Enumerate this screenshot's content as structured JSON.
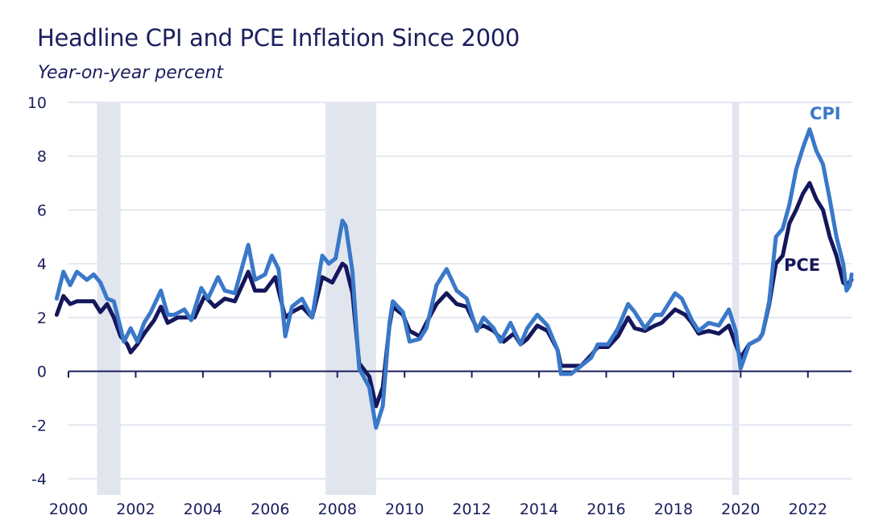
{
  "chart_data": {
    "type": "line",
    "title": "Headline CPI and PCE Inflation Since 2000",
    "subtitle": "Year-on-year percent",
    "xlabel": "",
    "ylabel": "",
    "xlim": [
      2000,
      2023.3
    ],
    "ylim": [
      -4,
      10
    ],
    "grid": true,
    "x_ticks": [
      "2000",
      "2002",
      "2004",
      "2006",
      "2008",
      "2010",
      "2012",
      "2014",
      "2016",
      "2018",
      "2020",
      "2022"
    ],
    "y_ticks": [
      "10",
      "8",
      "6",
      "4",
      "2",
      "0",
      "-2",
      "-4"
    ],
    "recessions": [
      [
        2001.2,
        2001.9
      ],
      [
        2008.0,
        2009.5
      ],
      [
        2020.1,
        2020.3
      ]
    ],
    "colors": {
      "CPI": "#3a78c9",
      "PCE": "#15175c",
      "recession": "#e1e5ee",
      "grid": "#e4e7f0",
      "axis": "#1b1f5e"
    },
    "series": [
      {
        "name": "CPI",
        "label": "CPI",
        "x": [
          2000.0,
          2000.2,
          2000.4,
          2000.6,
          2000.9,
          2001.1,
          2001.3,
          2001.5,
          2001.7,
          2001.9,
          2002.0,
          2002.2,
          2002.4,
          2002.6,
          2002.8,
          2003.1,
          2003.3,
          2003.5,
          2003.8,
          2004.0,
          2004.3,
          2004.5,
          2004.8,
          2005.0,
          2005.3,
          2005.7,
          2005.9,
          2006.2,
          2006.4,
          2006.6,
          2006.8,
          2007.0,
          2007.3,
          2007.6,
          2007.9,
          2008.1,
          2008.3,
          2008.5,
          2008.6,
          2008.8,
          2009.0,
          2009.3,
          2009.5,
          2009.7,
          2009.9,
          2010.0,
          2010.3,
          2010.5,
          2010.8,
          2011.0,
          2011.3,
          2011.6,
          2011.9,
          2012.2,
          2012.5,
          2012.7,
          2013.0,
          2013.2,
          2013.5,
          2013.8,
          2014.0,
          2014.3,
          2014.6,
          2014.9,
          2015.0,
          2015.3,
          2015.6,
          2015.9,
          2016.1,
          2016.4,
          2016.7,
          2017.0,
          2017.2,
          2017.5,
          2017.8,
          2018.0,
          2018.4,
          2018.6,
          2018.9,
          2019.1,
          2019.4,
          2019.7,
          2020.0,
          2020.2,
          2020.35,
          2020.6,
          2020.9,
          2021.0,
          2021.2,
          2021.4,
          2021.6,
          2021.8,
          2022.0,
          2022.2,
          2022.4,
          2022.6,
          2022.8,
          2023.0,
          2023.2,
          2023.4,
          2023.5,
          2023.6,
          2023.65
        ],
        "values": [
          2.7,
          3.7,
          3.2,
          3.7,
          3.4,
          3.6,
          3.3,
          2.7,
          2.6,
          1.6,
          1.1,
          1.6,
          1.1,
          1.8,
          2.2,
          3.0,
          2.1,
          2.1,
          2.3,
          1.9,
          3.1,
          2.7,
          3.5,
          3.0,
          2.9,
          4.7,
          3.4,
          3.6,
          4.3,
          3.8,
          1.3,
          2.4,
          2.7,
          2.0,
          4.3,
          4.0,
          4.2,
          5.6,
          5.4,
          3.7,
          0.1,
          -0.6,
          -2.1,
          -1.3,
          1.8,
          2.6,
          2.2,
          1.1,
          1.2,
          1.6,
          3.2,
          3.8,
          3.0,
          2.7,
          1.5,
          2.0,
          1.6,
          1.1,
          1.8,
          1.0,
          1.6,
          2.1,
          1.7,
          0.8,
          -0.1,
          -0.1,
          0.2,
          0.5,
          1.0,
          1.0,
          1.6,
          2.5,
          2.2,
          1.6,
          2.1,
          2.1,
          2.9,
          2.7,
          1.9,
          1.5,
          1.8,
          1.7,
          2.3,
          1.5,
          0.1,
          1.0,
          1.2,
          1.4,
          2.6,
          5.0,
          5.3,
          6.2,
          7.5,
          8.3,
          9.0,
          8.2,
          7.7,
          6.4,
          5.0,
          4.0,
          3.0,
          3.2,
          3.6
        ]
      },
      {
        "name": "PCE",
        "label": "PCE",
        "x": [
          2000.0,
          2000.2,
          2000.4,
          2000.6,
          2000.9,
          2001.1,
          2001.3,
          2001.5,
          2001.7,
          2001.9,
          2002.1,
          2002.2,
          2002.4,
          2002.6,
          2002.9,
          2003.1,
          2003.3,
          2003.6,
          2003.9,
          2004.1,
          2004.4,
          2004.7,
          2005.0,
          2005.3,
          2005.7,
          2005.9,
          2006.2,
          2006.5,
          2006.8,
          2007.0,
          2007.3,
          2007.6,
          2007.9,
          2008.2,
          2008.5,
          2008.6,
          2008.8,
          2009.0,
          2009.3,
          2009.5,
          2009.7,
          2009.9,
          2010.0,
          2010.3,
          2010.5,
          2010.8,
          2011.0,
          2011.3,
          2011.6,
          2011.9,
          2012.2,
          2012.5,
          2012.7,
          2013.0,
          2013.3,
          2013.6,
          2013.8,
          2014.0,
          2014.3,
          2014.6,
          2014.9,
          2015.0,
          2015.3,
          2015.6,
          2015.9,
          2016.1,
          2016.4,
          2016.7,
          2017.0,
          2017.2,
          2017.5,
          2017.8,
          2018.0,
          2018.4,
          2018.7,
          2018.9,
          2019.1,
          2019.4,
          2019.7,
          2020.0,
          2020.2,
          2020.35,
          2020.6,
          2020.9,
          2021.0,
          2021.2,
          2021.4,
          2021.6,
          2021.8,
          2022.0,
          2022.2,
          2022.4,
          2022.6,
          2022.8,
          2023.0,
          2023.2,
          2023.4,
          2023.5,
          2023.65
        ],
        "values": [
          2.1,
          2.8,
          2.5,
          2.6,
          2.6,
          2.6,
          2.2,
          2.5,
          2.0,
          1.3,
          1.0,
          0.7,
          1.0,
          1.4,
          1.9,
          2.4,
          1.8,
          2.0,
          2.0,
          2.0,
          2.8,
          2.4,
          2.7,
          2.6,
          3.7,
          3.0,
          3.0,
          3.5,
          2.0,
          2.2,
          2.4,
          2.0,
          3.5,
          3.3,
          4.0,
          3.9,
          2.9,
          0.3,
          -0.2,
          -1.3,
          -0.6,
          1.7,
          2.4,
          2.1,
          1.5,
          1.3,
          1.8,
          2.5,
          2.9,
          2.5,
          2.4,
          1.6,
          1.7,
          1.5,
          1.1,
          1.4,
          1.0,
          1.2,
          1.7,
          1.5,
          0.8,
          0.2,
          0.2,
          0.2,
          0.6,
          0.9,
          0.9,
          1.3,
          2.0,
          1.6,
          1.5,
          1.7,
          1.8,
          2.3,
          2.1,
          1.8,
          1.4,
          1.5,
          1.4,
          1.7,
          1.0,
          0.5,
          1.0,
          1.2,
          1.4,
          2.5,
          4.0,
          4.3,
          5.5,
          6.0,
          6.6,
          7.0,
          6.4,
          6.0,
          5.0,
          4.3,
          3.3,
          3.2,
          3.4
        ]
      }
    ]
  }
}
